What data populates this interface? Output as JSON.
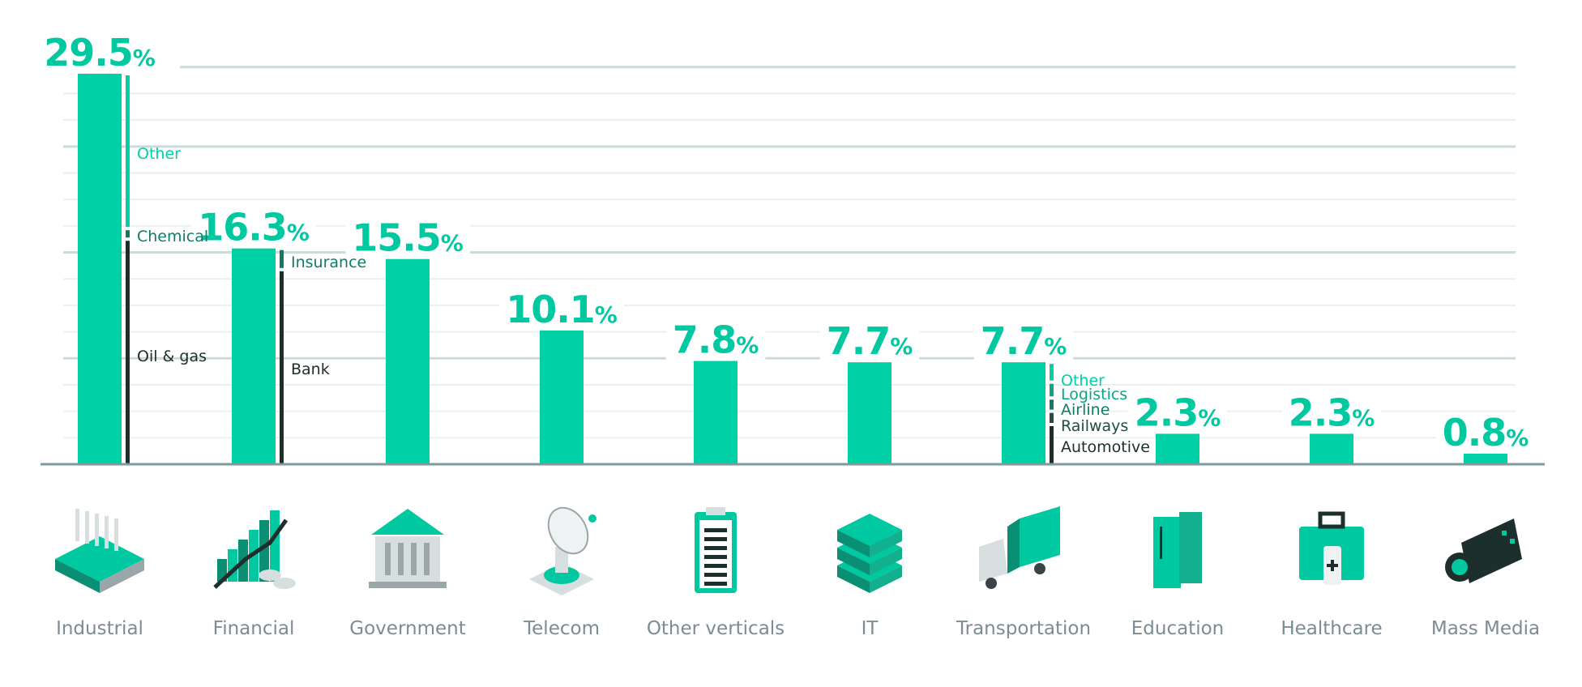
{
  "chart_data": {
    "type": "bar",
    "ylim": [
      0,
      30
    ],
    "grid": true,
    "unit": "%",
    "categories": [
      "Industrial",
      "Financial",
      "Government",
      "Telecom",
      "Other verticals",
      "IT",
      "Transportation",
      "Education",
      "Healthcare",
      "Mass Media"
    ],
    "values": [
      29.5,
      16.3,
      15.5,
      10.1,
      7.8,
      7.7,
      7.7,
      2.3,
      2.3,
      0.8
    ],
    "value_labels": [
      "29.5",
      "16.3",
      "15.5",
      "10.1",
      "7.8",
      "7.7",
      "7.7",
      "2.3",
      "2.3",
      "0.8"
    ],
    "breakdowns": [
      {
        "category": "Industrial",
        "segments": [
          {
            "label": "Oil & gas",
            "from": 0,
            "to": 17.0,
            "tone": "dark"
          },
          {
            "label": "Chemical",
            "from": 17.0,
            "to": 17.8,
            "tone": "mid"
          },
          {
            "label": "Other",
            "from": 17.8,
            "to": 29.5,
            "tone": "light"
          }
        ]
      },
      {
        "category": "Financial",
        "segments": [
          {
            "label": "Bank",
            "from": 0,
            "to": 14.7,
            "tone": "dark"
          },
          {
            "label": "Insurance",
            "from": 14.7,
            "to": 16.3,
            "tone": "mid"
          }
        ]
      },
      {
        "category": "Transportation",
        "segments": [
          {
            "label": "Automotive",
            "from": 0,
            "to": 3.0,
            "tone": "dark"
          },
          {
            "label": "Railways",
            "from": 3.0,
            "to": 4.0,
            "tone": "dark2"
          },
          {
            "label": "Airline",
            "from": 4.0,
            "to": 5.0,
            "tone": "mid"
          },
          {
            "label": "Logistics",
            "from": 5.0,
            "to": 6.2,
            "tone": "mid2"
          },
          {
            "label": "Other",
            "from": 6.2,
            "to": 7.7,
            "tone": "light"
          }
        ]
      }
    ]
  },
  "icons": [
    "factory-icon",
    "financial-growth-icon",
    "government-building-icon",
    "satellite-dish-icon",
    "clipboard-icon",
    "server-stack-icon",
    "truck-icon",
    "books-icon",
    "first-aid-kit-icon",
    "video-camera-icon"
  ],
  "colors": {
    "bar": "#00d0a6",
    "value_text": "#00c8a0",
    "grid": "#e6f2ef",
    "grid_major": "#c9dcda",
    "axis": "#7f9a9c",
    "category_text": "#7b8c93",
    "segment_dark": "#1d2f2c",
    "segment_dark2": "#214d44",
    "segment_mid": "#127a64",
    "segment_mid2": "#0aa582",
    "segment_light": "#00d0a6"
  }
}
